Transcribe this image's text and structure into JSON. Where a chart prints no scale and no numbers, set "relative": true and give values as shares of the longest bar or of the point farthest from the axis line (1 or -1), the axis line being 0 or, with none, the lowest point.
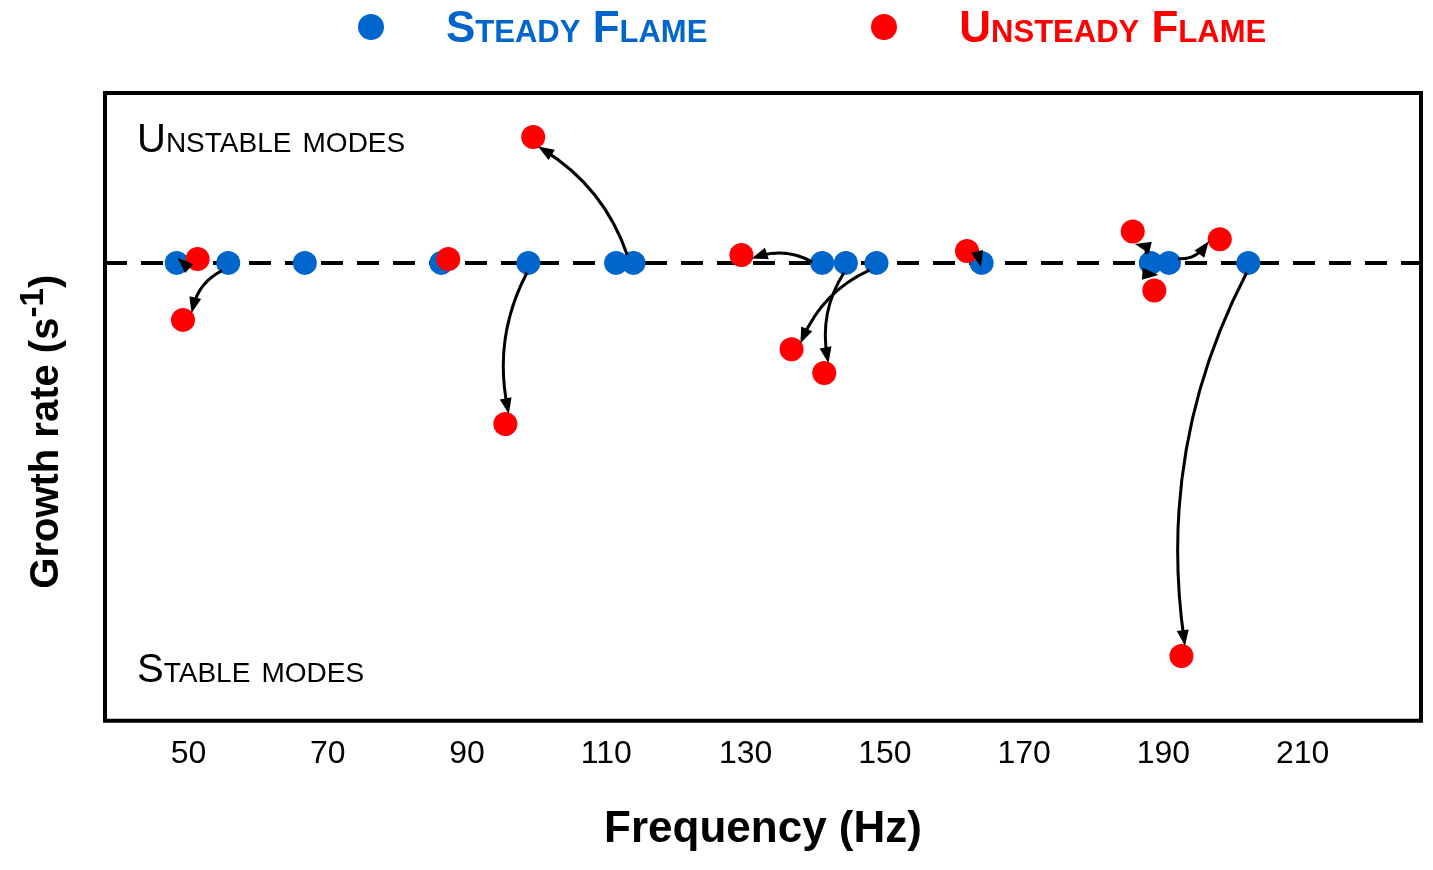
{
  "chart_data": {
    "type": "scatter",
    "relative": true,
    "xlabel": "Frequency (Hz)",
    "ylabel": "Growth rate (s$^{-1}$)",
    "xlim": [
      38,
      227
    ],
    "xticks": [
      50,
      70,
      90,
      110,
      130,
      150,
      170,
      190,
      210
    ],
    "legend": "top",
    "marker": "circle",
    "grid": false,
    "annotations": [
      "Unstable modes",
      "Stable modes"
    ],
    "ref_lines": [
      {
        "axis": "y",
        "value": 0,
        "line_style": "dashed",
        "color": "#000000"
      }
    ],
    "series": [
      {
        "name": "Steady Flame",
        "color": "#0066cc",
        "x": [
          48.3,
          55.7,
          66.7,
          86.3,
          98.8,
          111.4,
          113.9,
          141,
          144.4,
          148.8,
          163.9,
          188.2,
          190.8,
          202.2
        ],
        "values": [
          0,
          0,
          0,
          0,
          0,
          0,
          0,
          0,
          0,
          0,
          0,
          0,
          0,
          0
        ]
      },
      {
        "name": "Unsteady Flame",
        "color": "#ff0000",
        "x": [
          51.3,
          49.2,
          87.3,
          95.5,
          99.5,
          129.4,
          136.6,
          141.3,
          161.8,
          185.6,
          188.7,
          198.1,
          192.6
        ],
        "values": [
          0.01,
          -0.145,
          0.01,
          -0.41,
          0.32,
          0.02,
          -0.22,
          -0.28,
          0.03,
          0.08,
          -0.07,
          0.06,
          -1
        ]
      }
    ]
  }
}
